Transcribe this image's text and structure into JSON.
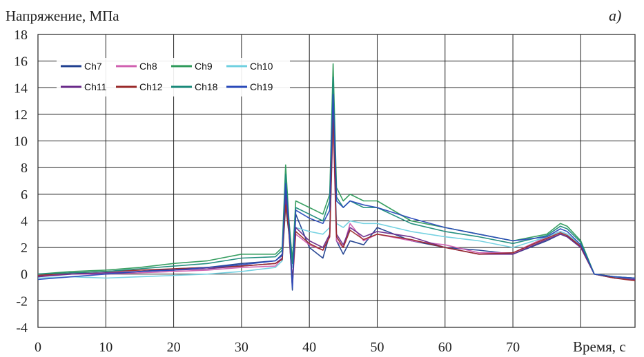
{
  "chart_data": {
    "type": "line",
    "ylabel": "Напряжение, МПа",
    "xlabel": "Время, с",
    "panel_label": "a)",
    "xlim": [
      0,
      88
    ],
    "ylim": [
      -4,
      18
    ],
    "x_ticks": [
      "0",
      "10",
      "20",
      "30",
      "40",
      "50",
      "60",
      "70"
    ],
    "y_ticks": [
      "18",
      "16",
      "14",
      "12",
      "10",
      "8",
      "6",
      "4",
      "2",
      "0",
      "-2",
      "-4"
    ],
    "grid": true,
    "legend_position": "top-left",
    "series": [
      {
        "name": "Ch7",
        "color": "#1f3f8f",
        "x": [
          0,
          5,
          10,
          15,
          20,
          25,
          30,
          35,
          36,
          36.5,
          37,
          37.5,
          38,
          40,
          42,
          43,
          43.5,
          44,
          45,
          46,
          48,
          50,
          55,
          60,
          65,
          70,
          75,
          77,
          78,
          80,
          82,
          85,
          88
        ],
        "y": [
          -0.2,
          0.1,
          0,
          0.2,
          0.4,
          0.5,
          0.8,
          1.0,
          1.5,
          6.5,
          3.5,
          -1.2,
          4.5,
          2.0,
          1.2,
          3.0,
          12.8,
          2.5,
          1.5,
          2.5,
          2.2,
          3.5,
          2.5,
          2.0,
          1.8,
          1.5,
          2.5,
          3.0,
          2.8,
          2.0,
          0,
          -0.3,
          -0.3
        ]
      },
      {
        "name": "Ch8",
        "color": "#d060b0",
        "x": [
          0,
          5,
          10,
          15,
          20,
          25,
          30,
          35,
          36,
          36.5,
          37,
          37.5,
          38,
          40,
          42,
          43,
          43.5,
          44,
          45,
          46,
          48,
          50,
          55,
          60,
          65,
          70,
          75,
          77,
          78,
          80,
          82,
          85,
          88
        ],
        "y": [
          -0.1,
          0,
          0,
          0.1,
          0.2,
          0.3,
          0.5,
          0.6,
          1.2,
          5.5,
          3.0,
          -0.8,
          3.0,
          2.2,
          1.8,
          2.8,
          11.5,
          2.5,
          2.0,
          3.8,
          2.5,
          3.0,
          2.5,
          2.2,
          1.6,
          1.6,
          2.8,
          3.2,
          3.0,
          2.0,
          0,
          -0.3,
          -0.4
        ]
      },
      {
        "name": "Ch9",
        "color": "#2e9a5a",
        "x": [
          0,
          5,
          10,
          15,
          20,
          25,
          30,
          35,
          36,
          36.5,
          37,
          37.5,
          38,
          40,
          42,
          43,
          43.5,
          44,
          45,
          46,
          48,
          50,
          55,
          60,
          65,
          70,
          75,
          77,
          78,
          80,
          82,
          85,
          88
        ],
        "y": [
          0,
          0.2,
          0.3,
          0.5,
          0.8,
          1.0,
          1.5,
          1.5,
          2.0,
          8.2,
          4.0,
          1.0,
          5.5,
          5.0,
          4.5,
          6.0,
          15.8,
          6.5,
          5.5,
          6.0,
          5.5,
          5.5,
          4.0,
          3.5,
          3.0,
          2.5,
          3.0,
          3.8,
          3.6,
          2.5,
          0,
          -0.2,
          -0.3
        ]
      },
      {
        "name": "Ch10",
        "color": "#6fd0e0",
        "x": [
          0,
          5,
          10,
          15,
          20,
          25,
          30,
          35,
          36,
          36.5,
          37,
          37.5,
          38,
          40,
          42,
          43,
          43.5,
          44,
          45,
          46,
          48,
          50,
          55,
          60,
          65,
          70,
          75,
          77,
          78,
          80,
          82,
          85,
          88
        ],
        "y": [
          -0.3,
          -0.2,
          -0.3,
          -0.2,
          -0.1,
          0,
          0.2,
          0.5,
          1.0,
          5.0,
          3.0,
          0.5,
          3.5,
          3.2,
          3.0,
          3.5,
          12.0,
          3.8,
          3.5,
          4.0,
          3.8,
          3.8,
          3.2,
          2.8,
          2.5,
          2.0,
          2.8,
          3.2,
          3.0,
          2.2,
          0,
          -0.3,
          -0.3
        ]
      },
      {
        "name": "Ch11",
        "color": "#6a2a8a",
        "x": [
          0,
          5,
          10,
          15,
          20,
          25,
          30,
          35,
          36,
          36.5,
          37,
          37.5,
          38,
          40,
          42,
          43,
          43.5,
          44,
          45,
          46,
          48,
          50,
          55,
          60,
          65,
          70,
          75,
          77,
          78,
          80,
          82,
          85,
          88
        ],
        "y": [
          -0.2,
          0,
          0.1,
          0.2,
          0.3,
          0.4,
          0.6,
          0.8,
          1.2,
          5.8,
          3.2,
          -0.5,
          3.5,
          2.5,
          2.0,
          3.0,
          12.5,
          3.0,
          2.2,
          3.5,
          2.8,
          3.2,
          2.8,
          2.0,
          1.5,
          1.5,
          2.6,
          3.0,
          2.8,
          2.0,
          0,
          -0.3,
          -0.4
        ]
      },
      {
        "name": "Ch12",
        "color": "#9a2a2a",
        "x": [
          0,
          5,
          10,
          15,
          20,
          25,
          30,
          35,
          36,
          36.5,
          37,
          37.5,
          38,
          40,
          42,
          43,
          43.5,
          44,
          45,
          46,
          48,
          50,
          55,
          60,
          65,
          70,
          75,
          77,
          78,
          80,
          82,
          85,
          88
        ],
        "y": [
          -0.1,
          0.1,
          0.2,
          0.3,
          0.4,
          0.5,
          0.6,
          0.8,
          1.1,
          5.2,
          3.0,
          -0.6,
          3.2,
          2.3,
          1.8,
          2.8,
          12.2,
          2.8,
          2.0,
          3.3,
          2.6,
          3.0,
          2.6,
          2.0,
          1.5,
          1.6,
          2.7,
          3.1,
          2.9,
          2.1,
          0,
          -0.3,
          -0.5
        ]
      },
      {
        "name": "Ch18",
        "color": "#1a8a7a",
        "x": [
          0,
          5,
          10,
          15,
          20,
          25,
          30,
          35,
          36,
          36.5,
          37,
          37.5,
          38,
          40,
          42,
          43,
          43.5,
          44,
          45,
          46,
          48,
          50,
          55,
          60,
          65,
          70,
          75,
          77,
          78,
          80,
          82,
          85,
          88
        ],
        "y": [
          0,
          0.1,
          0.2,
          0.4,
          0.6,
          0.8,
          1.2,
          1.3,
          1.8,
          7.5,
          3.8,
          0.8,
          5.0,
          4.5,
          4.0,
          5.5,
          14.8,
          5.8,
          5.0,
          5.5,
          5.0,
          5.0,
          3.8,
          3.2,
          2.8,
          2.3,
          2.9,
          3.6,
          3.4,
          2.4,
          0,
          -0.2,
          -0.3
        ]
      },
      {
        "name": "Ch19",
        "color": "#2a4aba",
        "x": [
          0,
          5,
          10,
          15,
          20,
          25,
          30,
          35,
          36,
          36.5,
          37,
          37.5,
          38,
          40,
          42,
          43,
          43.5,
          44,
          45,
          46,
          48,
          50,
          55,
          60,
          65,
          70,
          75,
          77,
          78,
          80,
          82,
          85,
          88
        ],
        "y": [
          -0.4,
          -0.2,
          0,
          0.2,
          0.3,
          0.5,
          0.7,
          1.0,
          1.4,
          6.8,
          3.5,
          -1.0,
          4.8,
          4.2,
          3.8,
          4.8,
          13.5,
          5.5,
          5.0,
          5.5,
          5.2,
          5.0,
          4.2,
          3.5,
          3.0,
          2.5,
          2.8,
          3.4,
          3.2,
          2.2,
          0,
          -0.2,
          -0.3
        ]
      }
    ]
  }
}
